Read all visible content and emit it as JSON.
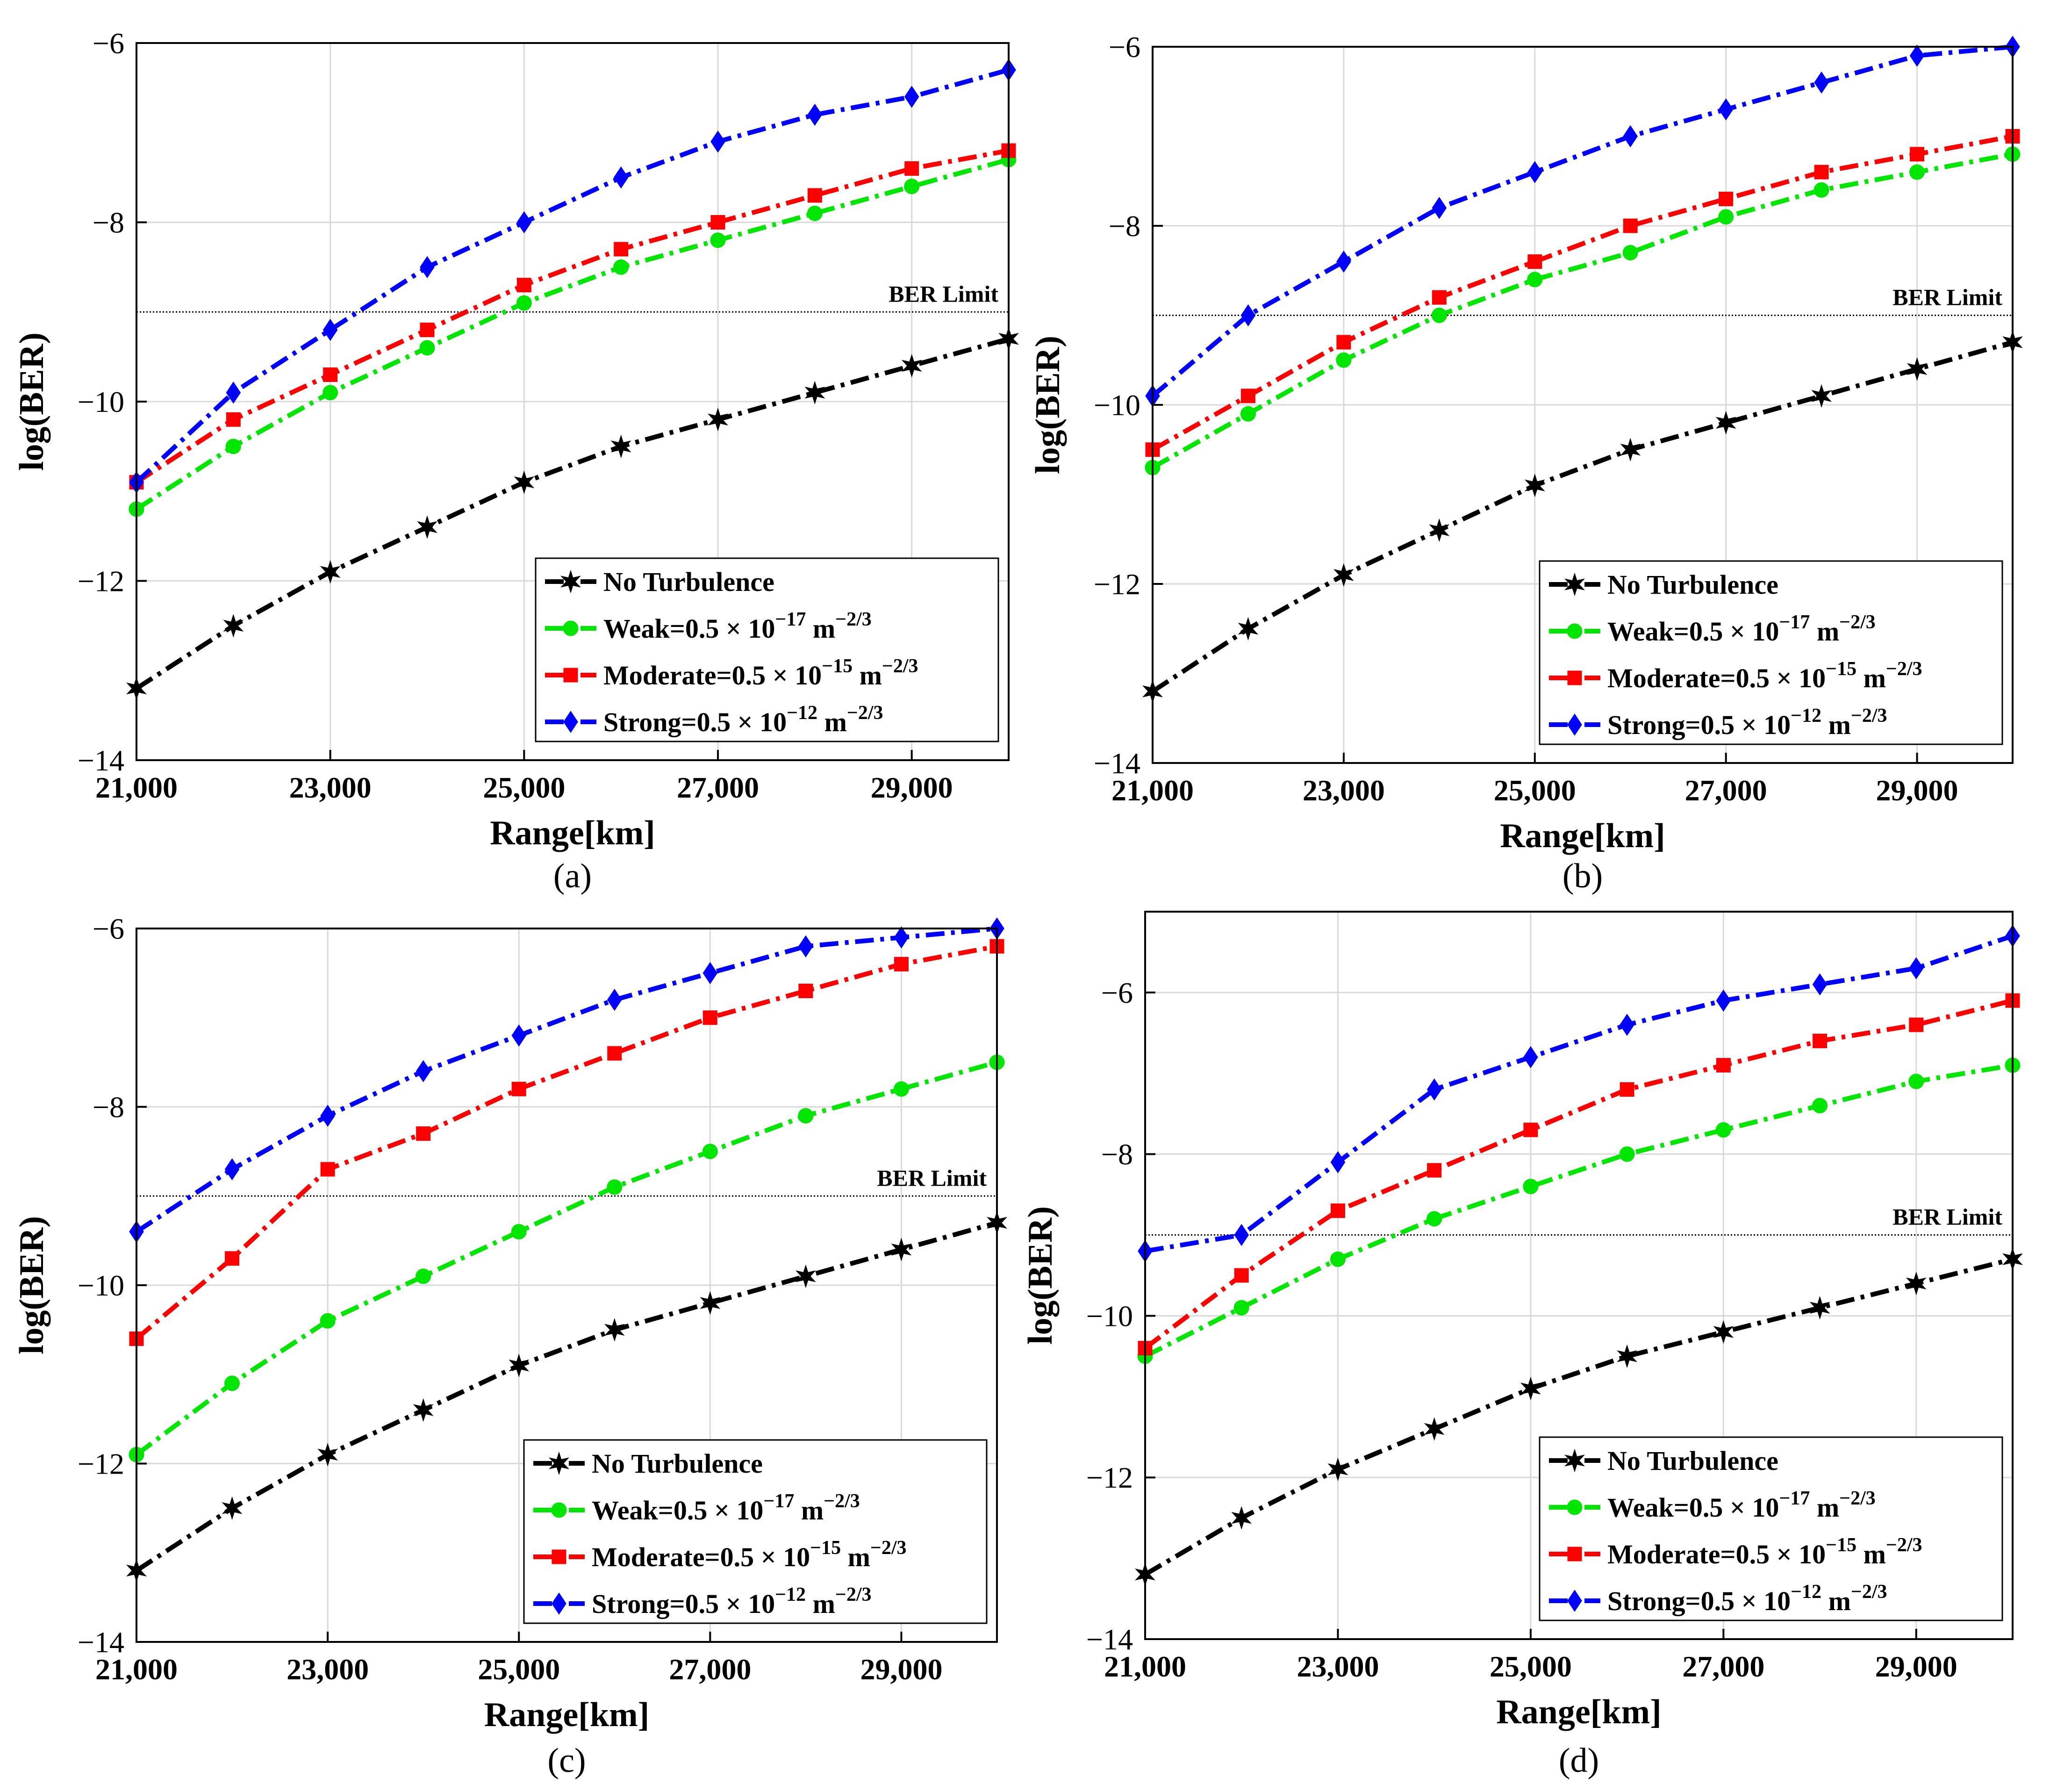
{
  "figure": {
    "panel_labels": [
      "(a)",
      "(b)",
      "(c)",
      "(d)"
    ]
  },
  "colors": {
    "no_turbulence": "#000000",
    "weak": "#00e600",
    "moderate": "#ff0000",
    "strong": "#0000ff",
    "grid": "#d9d9d9",
    "ber_limit": "#000000"
  },
  "chart_data": [
    {
      "type": "line",
      "panel_label": "(a)",
      "xlabel": "Range[km]",
      "ylabel": "log(BER)",
      "xlim": [
        21000,
        30000
      ],
      "ylim": [
        -14,
        -6
      ],
      "xticks": [
        21000,
        23000,
        25000,
        27000,
        29000
      ],
      "xtick_labels": [
        "21,000",
        "23,000",
        "25,000",
        "27,000",
        "29,000"
      ],
      "yticks": [
        -14,
        -12,
        -10,
        -8,
        -6
      ],
      "ytick_labels": [
        "−14",
        "−12",
        "−10",
        "−8",
        "−6"
      ],
      "grid": true,
      "legend_position": "bottom-right",
      "reference_line": {
        "y": -9,
        "label": "BER Limit"
      },
      "x": [
        21000,
        22000,
        23000,
        24000,
        25000,
        26000,
        27000,
        28000,
        29000,
        30000
      ],
      "series": [
        {
          "key": "no_turbulence",
          "name": "No Turbulence",
          "name_main": "No Turbulence",
          "exponent": "",
          "unit": "",
          "unit_exp": "",
          "marker": "star",
          "values": [
            -13.2,
            -12.5,
            -11.9,
            -11.4,
            -10.9,
            -10.5,
            -10.2,
            -9.9,
            -9.6,
            -9.3
          ]
        },
        {
          "key": "weak",
          "name": "Weak=0.5 × 10^−17 m^−2/3",
          "name_main": "Weak=0.5 × 10",
          "exponent": "−17",
          "unit": " m",
          "unit_exp": "−2/3",
          "marker": "circle",
          "values": [
            -11.2,
            -10.5,
            -9.9,
            -9.4,
            -8.9,
            -8.5,
            -8.2,
            -7.9,
            -7.6,
            -7.3
          ]
        },
        {
          "key": "moderate",
          "name": "Moderate=0.5 × 10^−15 m^−2/3",
          "name_main": "Moderate=0.5 × 10",
          "exponent": "−15",
          "unit": " m",
          "unit_exp": "−2/3",
          "marker": "square",
          "values": [
            -10.9,
            -10.2,
            -9.7,
            -9.2,
            -8.7,
            -8.3,
            -8.0,
            -7.7,
            -7.4,
            -7.2
          ]
        },
        {
          "key": "strong",
          "name": "Strong=0.5 × 10^−12 m^−2/3",
          "name_main": "Strong=0.5 × 10",
          "exponent": "−12",
          "unit": " m",
          "unit_exp": "−2/3",
          "marker": "diamond",
          "values": [
            -10.9,
            -9.9,
            -9.2,
            -8.5,
            -8.0,
            -7.5,
            -7.1,
            -6.8,
            -6.6,
            -6.3
          ]
        }
      ]
    },
    {
      "type": "line",
      "panel_label": "(b)",
      "xlabel": "Range[km]",
      "ylabel": "log(BER)",
      "xlim": [
        21000,
        30000
      ],
      "ylim": [
        -14,
        -6
      ],
      "xticks": [
        21000,
        23000,
        25000,
        27000,
        29000
      ],
      "xtick_labels": [
        "21,000",
        "23,000",
        "25,000",
        "27,000",
        "29,000"
      ],
      "yticks": [
        -14,
        -12,
        -10,
        -8,
        -6
      ],
      "ytick_labels": [
        "−14",
        "−12",
        "−10",
        "−8",
        "−6"
      ],
      "grid": true,
      "legend_position": "bottom-right",
      "reference_line": {
        "y": -9,
        "label": "BER Limit"
      },
      "x": [
        21000,
        22000,
        23000,
        24000,
        25000,
        26000,
        27000,
        28000,
        29000,
        30000
      ],
      "series": [
        {
          "key": "no_turbulence",
          "name": "No Turbulence",
          "name_main": "No Turbulence",
          "exponent": "",
          "unit": "",
          "unit_exp": "",
          "marker": "star",
          "values": [
            -13.2,
            -12.5,
            -11.9,
            -11.4,
            -10.9,
            -10.5,
            -10.2,
            -9.9,
            -9.6,
            -9.3
          ]
        },
        {
          "key": "weak",
          "name": "Weak=0.5 × 10^−17 m^−2/3",
          "name_main": "Weak=0.5 × 10",
          "exponent": "−17",
          "unit": " m",
          "unit_exp": "−2/3",
          "marker": "circle",
          "values": [
            -10.7,
            -10.1,
            -9.5,
            -9.0,
            -8.6,
            -8.3,
            -7.9,
            -7.6,
            -7.4,
            -7.2
          ]
        },
        {
          "key": "moderate",
          "name": "Moderate=0.5 × 10^−15 m^−2/3",
          "name_main": "Moderate=0.5 × 10",
          "exponent": "−15",
          "unit": " m",
          "unit_exp": "−2/3",
          "marker": "square",
          "values": [
            -10.5,
            -9.9,
            -9.3,
            -8.8,
            -8.4,
            -8.0,
            -7.7,
            -7.4,
            -7.2,
            -7.0
          ]
        },
        {
          "key": "strong",
          "name": "Strong=0.5 × 10^−12 m^−2/3",
          "name_main": "Strong=0.5 × 10",
          "exponent": "−12",
          "unit": " m",
          "unit_exp": "−2/3",
          "marker": "diamond",
          "values": [
            -9.9,
            -9.0,
            -8.4,
            -7.8,
            -7.4,
            -7.0,
            -6.7,
            -6.4,
            -6.1,
            -6.0
          ]
        }
      ]
    },
    {
      "type": "line",
      "panel_label": "(c)",
      "xlabel": "Range[km]",
      "ylabel": "log(BER)",
      "xlim": [
        21000,
        30000
      ],
      "ylim": [
        -14,
        -6
      ],
      "xticks": [
        21000,
        23000,
        25000,
        27000,
        29000
      ],
      "xtick_labels": [
        "21,000",
        "23,000",
        "25,000",
        "27,000",
        "29,000"
      ],
      "yticks": [
        -14,
        -12,
        -10,
        -8,
        -6
      ],
      "ytick_labels": [
        "−14",
        "−12",
        "−10",
        "−8",
        "−6"
      ],
      "grid": true,
      "legend_position": "bottom-right",
      "reference_line": {
        "y": -9,
        "label": "BER Limit"
      },
      "x": [
        21000,
        22000,
        23000,
        24000,
        25000,
        26000,
        27000,
        28000,
        29000,
        30000
      ],
      "series": [
        {
          "key": "no_turbulence",
          "name": "No Turbulence",
          "name_main": "No Turbulence",
          "exponent": "",
          "unit": "",
          "unit_exp": "",
          "marker": "star",
          "values": [
            -13.2,
            -12.5,
            -11.9,
            -11.4,
            -10.9,
            -10.5,
            -10.2,
            -9.9,
            -9.6,
            -9.3
          ]
        },
        {
          "key": "weak",
          "name": "Weak=0.5 × 10^−17 m^−2/3",
          "name_main": "Weak=0.5 × 10",
          "exponent": "−17",
          "unit": " m",
          "unit_exp": "−2/3",
          "marker": "circle",
          "values": [
            -11.9,
            -11.1,
            -10.4,
            -9.9,
            -9.4,
            -8.9,
            -8.5,
            -8.1,
            -7.8,
            -7.5
          ]
        },
        {
          "key": "moderate",
          "name": "Moderate=0.5 × 10^−15 m^−2/3",
          "name_main": "Moderate=0.5 × 10",
          "exponent": "−15",
          "unit": " m",
          "unit_exp": "−2/3",
          "marker": "square",
          "values": [
            -10.6,
            -9.7,
            -8.7,
            -8.3,
            -7.8,
            -7.4,
            -7.0,
            -6.7,
            -6.4,
            -6.2
          ]
        },
        {
          "key": "strong",
          "name": "Strong=0.5 × 10^−12 m^−2/3",
          "name_main": "Strong=0.5 × 10",
          "exponent": "−12",
          "unit": " m",
          "unit_exp": "−2/3",
          "marker": "diamond",
          "values": [
            -9.4,
            -8.7,
            -8.1,
            -7.6,
            -7.2,
            -6.8,
            -6.5,
            -6.2,
            -6.1,
            -6.0
          ]
        }
      ]
    },
    {
      "type": "line",
      "panel_label": "(d)",
      "xlabel": "Range[km]",
      "ylabel": "log(BER)",
      "xlim": [
        21000,
        30000
      ],
      "ylim": [
        -14,
        -5
      ],
      "xticks": [
        21000,
        23000,
        25000,
        27000,
        29000
      ],
      "xtick_labels": [
        "21,000",
        "23,000",
        "25,000",
        "27,000",
        "29,000"
      ],
      "yticks": [
        -14,
        -12,
        -10,
        -8,
        -6
      ],
      "ytick_labels": [
        "−14",
        "−12",
        "−10",
        "−8",
        "−6"
      ],
      "grid": true,
      "legend_position": "bottom-right",
      "reference_line": {
        "y": -9,
        "label": "BER Limit"
      },
      "x": [
        21000,
        22000,
        23000,
        24000,
        25000,
        26000,
        27000,
        28000,
        29000,
        30000
      ],
      "series": [
        {
          "key": "no_turbulence",
          "name": "No Turbulence",
          "name_main": "No Turbulence",
          "exponent": "",
          "unit": "",
          "unit_exp": "",
          "marker": "star",
          "values": [
            -13.2,
            -12.5,
            -11.9,
            -11.4,
            -10.9,
            -10.5,
            -10.2,
            -9.9,
            -9.6,
            -9.3
          ]
        },
        {
          "key": "weak",
          "name": "Weak=0.5 × 10^−17 m^−2/3",
          "name_main": "Weak=0.5 × 10",
          "exponent": "−17",
          "unit": " m",
          "unit_exp": "−2/3",
          "marker": "circle",
          "values": [
            -10.5,
            -9.9,
            -9.3,
            -8.8,
            -8.4,
            -8.0,
            -7.7,
            -7.4,
            -7.1,
            -6.9
          ]
        },
        {
          "key": "moderate",
          "name": "Moderate=0.5 × 10^−15 m^−2/3",
          "name_main": "Moderate=0.5 × 10",
          "exponent": "−15",
          "unit": " m",
          "unit_exp": "−2/3",
          "marker": "square",
          "values": [
            -10.4,
            -9.5,
            -8.7,
            -8.2,
            -7.7,
            -7.2,
            -6.9,
            -6.6,
            -6.4,
            -6.1
          ]
        },
        {
          "key": "strong",
          "name": "Strong=0.5 × 10^−12 m^−2/3",
          "name_main": "Strong=0.5 × 10",
          "exponent": "−12",
          "unit": " m",
          "unit_exp": "−2/3",
          "marker": "diamond",
          "values": [
            -9.2,
            -9.0,
            -8.1,
            -7.2,
            -6.8,
            -6.4,
            -6.1,
            -5.9,
            -5.7,
            -5.3
          ]
        }
      ]
    }
  ]
}
